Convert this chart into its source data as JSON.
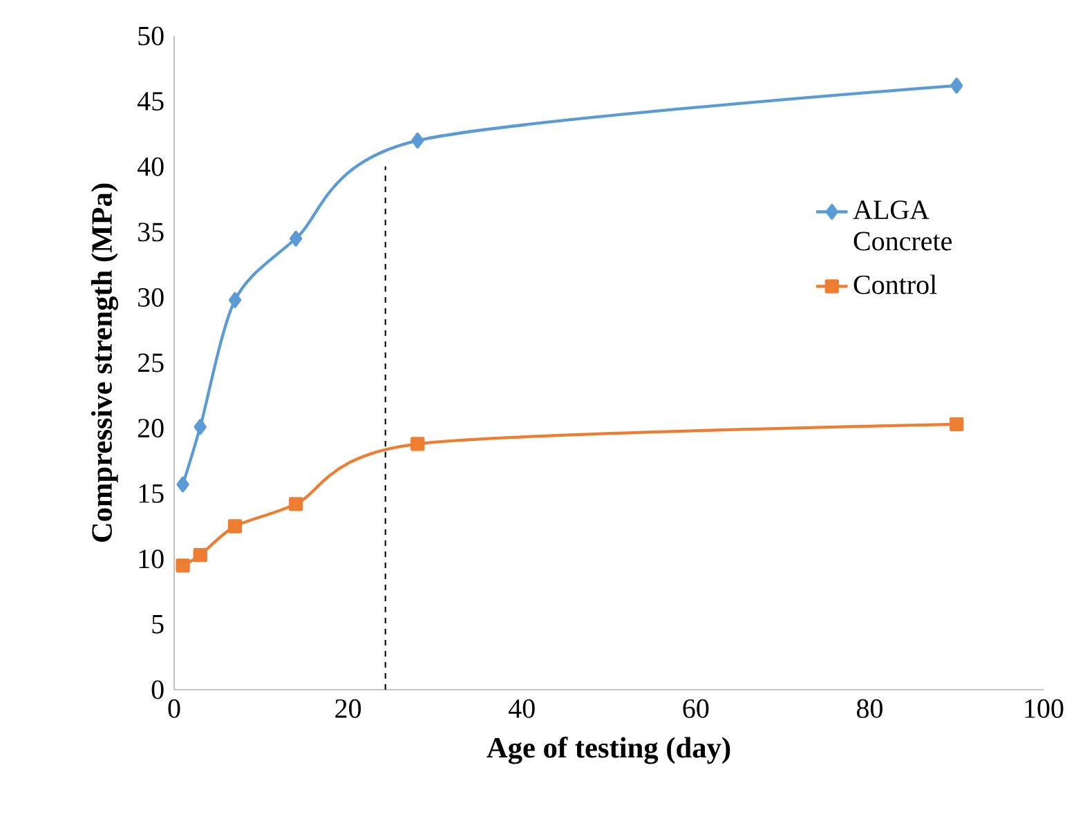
{
  "chart_data": {
    "type": "line",
    "xlabel": "Age of testing (day)",
    "ylabel": "Compressive strength (MPa)",
    "xlim": [
      0,
      100
    ],
    "xticks": [
      0,
      20,
      40,
      60,
      80,
      100
    ],
    "ylim": [
      0,
      50
    ],
    "yticks": [
      0,
      5,
      10,
      15,
      20,
      25,
      30,
      35,
      40,
      45,
      50
    ],
    "grid": false,
    "legend": "right",
    "line_style": "solid",
    "series": [
      {
        "name": "ALGA Concrete",
        "color": "#5b9bd5",
        "marker": "diamond",
        "x": [
          1,
          3,
          7,
          14,
          28,
          90
        ],
        "values": [
          15.7,
          20.1,
          29.8,
          34.5,
          42.0,
          46.2
        ]
      },
      {
        "name": "Control",
        "color": "#ed7d31",
        "marker": "square",
        "x": [
          1,
          3,
          7,
          14,
          28,
          90
        ],
        "values": [
          9.5,
          10.3,
          12.5,
          14.2,
          18.8,
          20.3
        ]
      }
    ],
    "ref_lines": [
      {
        "axis": "x",
        "value": 24.3,
        "line_style": "dashed",
        "color": "#000000"
      }
    ]
  }
}
